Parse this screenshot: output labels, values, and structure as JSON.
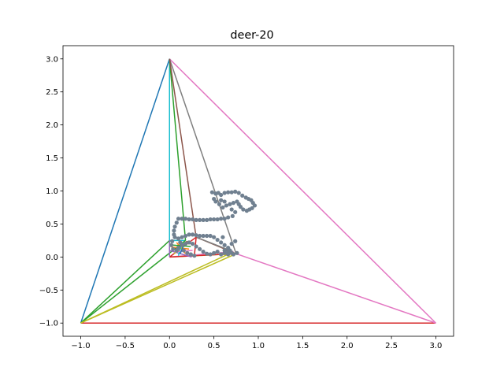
{
  "chart_data": {
    "type": "line",
    "title": "deer-20",
    "xlabel": "",
    "ylabel": "",
    "xlim": [
      -1.2,
      3.2
    ],
    "ylim": [
      -1.2,
      3.2
    ],
    "xticks": [
      -1.0,
      -0.5,
      0.0,
      0.5,
      1.0,
      1.5,
      2.0,
      2.5,
      3.0
    ],
    "yticks": [
      -1.0,
      -0.5,
      0.0,
      0.5,
      1.0,
      1.5,
      2.0,
      2.5,
      3.0
    ],
    "xtick_labels": [
      "−1.0",
      "−0.5",
      "0.0",
      "0.5",
      "1.0",
      "1.5",
      "2.0",
      "2.5",
      "3.0"
    ],
    "ytick_labels": [
      "−1.0",
      "−0.5",
      "0.0",
      "0.5",
      "1.0",
      "1.5",
      "2.0",
      "2.5",
      "3.0"
    ],
    "grid": false,
    "point_color": "#708090",
    "points": [
      [
        0.48,
        0.98
      ],
      [
        0.52,
        0.96
      ],
      [
        0.55,
        0.97
      ],
      [
        0.58,
        0.94
      ],
      [
        0.62,
        0.97
      ],
      [
        0.66,
        0.98
      ],
      [
        0.7,
        0.98
      ],
      [
        0.74,
        0.99
      ],
      [
        0.78,
        0.97
      ],
      [
        0.82,
        0.93
      ],
      [
        0.86,
        0.9
      ],
      [
        0.89,
        0.88
      ],
      [
        0.92,
        0.86
      ],
      [
        0.94,
        0.82
      ],
      [
        0.96,
        0.78
      ],
      [
        0.93,
        0.74
      ],
      [
        0.9,
        0.72
      ],
      [
        0.87,
        0.7
      ],
      [
        0.83,
        0.72
      ],
      [
        0.8,
        0.76
      ],
      [
        0.78,
        0.8
      ],
      [
        0.76,
        0.84
      ],
      [
        0.72,
        0.82
      ],
      [
        0.68,
        0.8
      ],
      [
        0.64,
        0.78
      ],
      [
        0.6,
        0.75
      ],
      [
        0.56,
        0.8
      ],
      [
        0.52,
        0.84
      ],
      [
        0.5,
        0.88
      ],
      [
        0.58,
        0.86
      ],
      [
        0.62,
        0.84
      ],
      [
        0.7,
        0.72
      ],
      [
        0.74,
        0.68
      ],
      [
        0.71,
        0.62
      ],
      [
        0.66,
        0.6
      ],
      [
        0.62,
        0.58
      ],
      [
        0.58,
        0.58
      ],
      [
        0.54,
        0.57
      ],
      [
        0.5,
        0.57
      ],
      [
        0.46,
        0.57
      ],
      [
        0.42,
        0.56
      ],
      [
        0.38,
        0.56
      ],
      [
        0.34,
        0.56
      ],
      [
        0.3,
        0.56
      ],
      [
        0.26,
        0.57
      ],
      [
        0.22,
        0.57
      ],
      [
        0.18,
        0.58
      ],
      [
        0.14,
        0.58
      ],
      [
        0.1,
        0.58
      ],
      [
        0.08,
        0.52
      ],
      [
        0.06,
        0.46
      ],
      [
        0.05,
        0.4
      ],
      [
        0.05,
        0.34
      ],
      [
        0.06,
        0.3
      ],
      [
        0.1,
        0.28
      ],
      [
        0.14,
        0.3
      ],
      [
        0.18,
        0.32
      ],
      [
        0.22,
        0.34
      ],
      [
        0.26,
        0.34
      ],
      [
        0.3,
        0.33
      ],
      [
        0.34,
        0.32
      ],
      [
        0.38,
        0.32
      ],
      [
        0.42,
        0.32
      ],
      [
        0.46,
        0.32
      ],
      [
        0.5,
        0.3
      ],
      [
        0.54,
        0.26
      ],
      [
        0.58,
        0.22
      ],
      [
        0.62,
        0.18
      ],
      [
        0.66,
        0.14
      ],
      [
        0.68,
        0.1
      ],
      [
        0.7,
        0.06
      ],
      [
        0.66,
        0.04
      ],
      [
        0.62,
        0.06
      ],
      [
        0.58,
        0.04
      ],
      [
        0.54,
        0.08
      ],
      [
        0.5,
        0.06
      ],
      [
        0.46,
        0.04
      ],
      [
        0.42,
        0.05
      ],
      [
        0.38,
        0.08
      ],
      [
        0.34,
        0.12
      ],
      [
        0.3,
        0.16
      ],
      [
        0.26,
        0.2
      ],
      [
        0.22,
        0.22
      ],
      [
        0.18,
        0.2
      ],
      [
        0.14,
        0.18
      ],
      [
        0.1,
        0.14
      ],
      [
        0.08,
        0.1
      ],
      [
        0.04,
        0.12
      ],
      [
        0.02,
        0.18
      ],
      [
        0.03,
        0.24
      ],
      [
        0.12,
        0.22
      ],
      [
        0.16,
        0.1
      ],
      [
        0.2,
        0.06
      ],
      [
        0.24,
        0.04
      ],
      [
        0.28,
        0.02
      ],
      [
        0.62,
        0.1
      ],
      [
        0.66,
        0.08
      ],
      [
        0.72,
        0.04
      ],
      [
        0.76,
        0.06
      ],
      [
        0.7,
        0.2
      ],
      [
        0.74,
        0.24
      ],
      [
        0.6,
        0.3
      ]
    ],
    "segments": [
      {
        "color": "#1f77b4",
        "points": [
          [
            -1.0,
            -1.0
          ],
          [
            0.0,
            3.0
          ]
        ]
      },
      {
        "color": "#d62728",
        "points": [
          [
            -1.0,
            -1.0
          ],
          [
            3.0,
            -1.0
          ]
        ]
      },
      {
        "color": "#e377c2",
        "points": [
          [
            0.0,
            3.0
          ],
          [
            3.0,
            -1.0
          ]
        ]
      },
      {
        "color": "#e377c2",
        "points": [
          [
            0.75,
            0.05
          ],
          [
            3.0,
            -1.0
          ]
        ]
      },
      {
        "color": "#17becf",
        "points": [
          [
            0.0,
            3.0
          ],
          [
            0.0,
            0.25
          ]
        ]
      },
      {
        "color": "#17becf",
        "points": [
          [
            0.0,
            0.25
          ],
          [
            0.18,
            0.25
          ]
        ]
      },
      {
        "color": "#2ca02c",
        "points": [
          [
            0.0,
            3.0
          ],
          [
            0.18,
            0.25
          ]
        ]
      },
      {
        "color": "#2ca02c",
        "points": [
          [
            -1.0,
            -1.0
          ],
          [
            0.18,
            0.25
          ]
        ]
      },
      {
        "color": "#2ca02c",
        "points": [
          [
            -1.0,
            -1.0
          ],
          [
            0.0,
            0.25
          ]
        ]
      },
      {
        "color": "#7f7f7f",
        "points": [
          [
            0.0,
            3.0
          ],
          [
            0.75,
            0.05
          ]
        ]
      },
      {
        "color": "#8c564b",
        "points": [
          [
            0.0,
            3.0
          ],
          [
            0.3,
            0.3
          ]
        ]
      },
      {
        "color": "#8c564b",
        "points": [
          [
            0.3,
            0.3
          ],
          [
            0.75,
            0.05
          ]
        ]
      },
      {
        "color": "#7f7f7f",
        "points": [
          [
            0.3,
            0.3
          ],
          [
            0.72,
            0.08
          ]
        ]
      },
      {
        "color": "#bcbd22",
        "points": [
          [
            -1.0,
            -1.0
          ],
          [
            0.75,
            0.05
          ]
        ]
      },
      {
        "color": "#bcbd22",
        "points": [
          [
            -1.0,
            -1.0
          ],
          [
            0.72,
            0.08
          ]
        ]
      },
      {
        "color": "#bcbd22",
        "points": [
          [
            0.0,
            0.0
          ],
          [
            0.75,
            0.05
          ]
        ]
      },
      {
        "color": "#e377c2",
        "points": [
          [
            0.0,
            0.0
          ],
          [
            0.72,
            0.08
          ]
        ]
      },
      {
        "color": "#d62728",
        "points": [
          [
            0.0,
            0.0
          ],
          [
            0.3,
            0.3
          ]
        ]
      },
      {
        "color": "#d62728",
        "points": [
          [
            0.0,
            0.0
          ],
          [
            0.28,
            0.02
          ]
        ]
      },
      {
        "color": "#d62728",
        "points": [
          [
            0.28,
            0.02
          ],
          [
            0.3,
            0.3
          ]
        ]
      },
      {
        "color": "#d62728",
        "points": [
          [
            0.28,
            0.02
          ],
          [
            0.75,
            0.05
          ]
        ]
      },
      {
        "color": "#9467bd",
        "points": [
          [
            0.0,
            0.0
          ],
          [
            0.0,
            0.25
          ]
        ]
      },
      {
        "color": "#9467bd",
        "points": [
          [
            0.0,
            0.1
          ],
          [
            0.25,
            0.0
          ]
        ]
      },
      {
        "color": "#ff7f0e",
        "points": [
          [
            0.02,
            0.15
          ],
          [
            0.22,
            0.12
          ]
        ]
      },
      {
        "color": "#ff7f0e",
        "points": [
          [
            0.08,
            0.22
          ],
          [
            0.18,
            0.05
          ]
        ]
      },
      {
        "color": "#bcbd22",
        "points": [
          [
            0.05,
            0.05
          ],
          [
            0.2,
            0.2
          ]
        ]
      },
      {
        "color": "#17becf",
        "points": [
          [
            0.1,
            0.02
          ],
          [
            0.14,
            0.22
          ]
        ]
      },
      {
        "color": "#2ca02c",
        "points": [
          [
            0.04,
            0.18
          ],
          [
            0.24,
            0.16
          ]
        ]
      },
      {
        "color": "#e377c2",
        "points": [
          [
            0.06,
            0.08
          ],
          [
            0.26,
            0.1
          ]
        ]
      },
      {
        "color": "#1f77b4",
        "points": [
          [
            0.12,
            0.05
          ],
          [
            0.16,
            0.18
          ]
        ]
      },
      {
        "color": "#8c564b",
        "points": [
          [
            0.08,
            0.12
          ],
          [
            0.2,
            0.24
          ]
        ]
      }
    ]
  }
}
